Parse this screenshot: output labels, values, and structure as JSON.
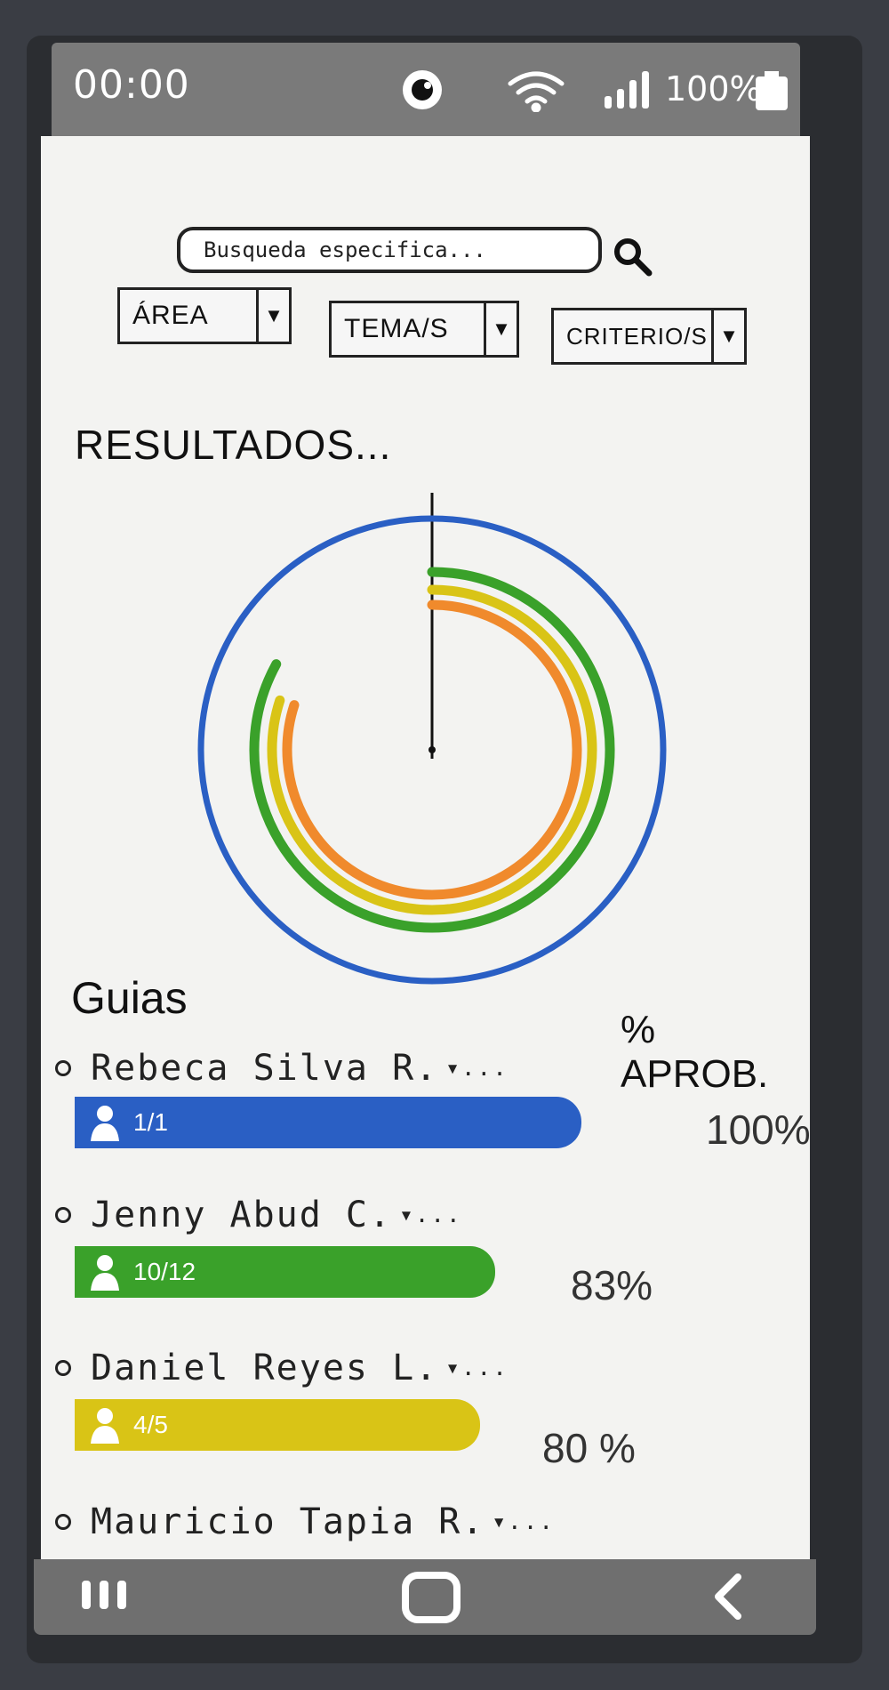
{
  "status_bar": {
    "time": "00:00",
    "battery": "100%"
  },
  "search": {
    "placeholder": "Busqueda especifica..."
  },
  "filters": [
    {
      "label": "ÁREA"
    },
    {
      "label": "TEMA/S"
    },
    {
      "label": "CRITERIO/S"
    }
  ],
  "results": {
    "title": "RESULTADOS..."
  },
  "guides_section": {
    "title": "Guias",
    "approval_header": "% APROB."
  },
  "guides": [
    {
      "name": "Rebeca Silva R.",
      "count": "1/1",
      "percent_label": "100%",
      "percent": 100,
      "color": "#2a5fc4"
    },
    {
      "name": "Jenny Abud C.",
      "count": "10/12",
      "percent_label": "83%",
      "percent": 83,
      "color": "#3aa12a"
    },
    {
      "name": "Daniel Reyes L.",
      "count": "4/5",
      "percent_label": "80 %",
      "percent": 80,
      "color": "#d9c416"
    },
    {
      "name": "Mauricio Tapia R.",
      "count": "",
      "percent_label": "",
      "percent": null,
      "color": ""
    }
  ],
  "more_marker": "▾...",
  "chart_data": {
    "type": "radial-bar",
    "series": [
      {
        "value": 100,
        "color": "#2a5fc4"
      },
      {
        "value": 83,
        "color": "#3aa12a"
      },
      {
        "value": 80,
        "color": "#d9c416"
      },
      {
        "value": 80,
        "color": "#f08a2c"
      }
    ]
  },
  "icons": {
    "eye": "eye-icon",
    "wifi": "wifi-icon",
    "signal": "signal-icon",
    "battery": "battery-icon",
    "search": "search-icon",
    "person": "person-icon",
    "recent": "recent-apps-icon",
    "home": "home-icon",
    "back": "back-icon"
  }
}
